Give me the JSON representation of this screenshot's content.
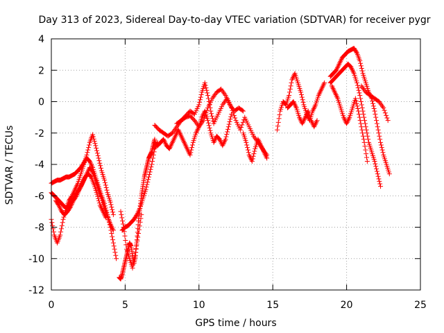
{
  "chart_data": {
    "type": "scatter",
    "title": "Day 313 of 2023, Sidereal Day-to-day VTEC variation (SDTVAR) for receiver pygr",
    "xlabel": "GPS time / hours",
    "ylabel": "SDTVAR / TECUs",
    "xlim": [
      0,
      25
    ],
    "ylim": [
      -12,
      4
    ],
    "xticks": [
      "0",
      "5",
      "10",
      "15",
      "20",
      "25"
    ],
    "yticks": [
      "-12",
      "-10",
      "-8",
      "-6",
      "-4",
      "-2",
      "0",
      "2",
      "4"
    ],
    "grid": true,
    "marker": "+",
    "color": "#ff0000",
    "series": [
      {
        "x": [
          0.0,
          0.2,
          0.4,
          0.6,
          0.8,
          1.0,
          1.2,
          1.4,
          1.6,
          1.8,
          2.0,
          2.2,
          2.4,
          2.6,
          2.8,
          3.0,
          3.2,
          3.4,
          3.6,
          3.8,
          4.0,
          4.2,
          4.4
        ],
        "y": [
          -5.2,
          -5.1,
          -5.0,
          -5.0,
          -4.9,
          -4.8,
          -4.8,
          -4.7,
          -4.6,
          -4.4,
          -4.2,
          -3.9,
          -3.6,
          -3.8,
          -4.2,
          -4.8,
          -5.4,
          -6.0,
          -6.5,
          -7.2,
          -8.0,
          -9.0,
          -10.0
        ]
      },
      {
        "x": [
          0.0,
          0.2,
          0.4,
          0.6,
          0.8,
          1.0,
          1.2,
          1.4,
          1.6,
          1.8,
          2.0,
          2.2,
          2.4,
          2.6,
          2.8,
          3.0,
          3.2,
          3.4,
          3.6,
          3.8,
          4.0,
          4.2
        ],
        "y": [
          -7.5,
          -8.5,
          -9.0,
          -8.5,
          -7.5,
          -6.8,
          -6.3,
          -6.0,
          -5.6,
          -5.2,
          -4.6,
          -4.0,
          -3.4,
          -2.6,
          -2.1,
          -2.8,
          -3.6,
          -4.4,
          -5.0,
          -5.8,
          -6.4,
          -7.2
        ]
      },
      {
        "x": [
          0.0,
          0.2,
          0.4,
          0.6,
          0.8,
          1.0,
          1.2,
          1.4,
          1.6,
          1.8,
          2.0,
          2.2,
          2.4,
          2.6,
          2.8,
          3.0,
          3.2,
          3.4,
          3.6,
          3.8,
          4.0,
          4.2
        ],
        "y": [
          -5.8,
          -6.0,
          -6.2,
          -6.4,
          -6.6,
          -6.8,
          -6.6,
          -6.3,
          -6.0,
          -5.7,
          -5.4,
          -5.0,
          -4.6,
          -4.2,
          -4.5,
          -5.0,
          -5.6,
          -6.2,
          -6.8,
          -7.3,
          -7.8,
          -8.2
        ]
      },
      {
        "x": [
          0.3,
          0.5,
          0.7,
          0.9,
          1.1,
          1.3,
          1.5,
          1.7,
          1.9,
          2.1,
          2.3,
          2.5,
          2.7,
          2.9,
          3.1,
          3.3,
          3.5,
          3.7
        ],
        "y": [
          -6.3,
          -6.6,
          -7.0,
          -7.2,
          -7.0,
          -6.7,
          -6.3,
          -6.0,
          -5.6,
          -5.2,
          -4.8,
          -4.6,
          -4.8,
          -5.3,
          -5.9,
          -6.6,
          -7.0,
          -7.4
        ]
      },
      {
        "x": [
          4.6,
          4.7,
          4.8,
          4.9,
          5.0,
          5.1,
          5.2,
          5.3,
          5.4,
          5.5,
          5.6,
          5.7,
          5.8,
          5.9,
          6.0,
          6.1,
          6.2,
          6.3,
          6.4,
          6.5,
          6.6,
          6.7,
          6.8,
          6.9,
          7.0
        ],
        "y": [
          -11.2,
          -11.3,
          -11.0,
          -10.6,
          -10.2,
          -9.8,
          -9.4,
          -9.0,
          -9.2,
          -9.8,
          -10.3,
          -9.8,
          -8.8,
          -7.6,
          -6.8,
          -6.0,
          -5.4,
          -4.8,
          -4.4,
          -4.0,
          -3.6,
          -3.4,
          -3.2,
          -2.8,
          -2.4
        ]
      },
      {
        "x": [
          4.8,
          5.0,
          5.2,
          5.4,
          5.6,
          5.8,
          6.0,
          6.2,
          6.4,
          6.6,
          6.8,
          7.0,
          7.2
        ],
        "y": [
          -8.2,
          -8.0,
          -7.9,
          -7.7,
          -7.5,
          -7.2,
          -6.8,
          -6.2,
          -5.6,
          -4.8,
          -4.0,
          -3.0,
          -2.6
        ]
      },
      {
        "x": [
          4.7,
          4.9,
          5.1,
          5.3,
          5.5,
          5.7,
          5.9,
          6.1
        ],
        "y": [
          -7.0,
          -8.0,
          -9.4,
          -10.0,
          -10.6,
          -9.6,
          -8.4,
          -7.2
        ]
      },
      {
        "x": [
          7.0,
          7.3,
          7.6,
          7.9,
          8.2,
          8.5,
          8.8,
          9.1,
          9.4,
          9.7,
          10.0,
          10.2,
          10.4,
          10.6,
          10.8,
          11.0,
          11.3,
          11.6,
          11.9,
          12.2,
          12.5,
          12.8,
          13.1,
          13.4,
          13.7,
          14.0,
          14.3,
          14.6
        ],
        "y": [
          -1.5,
          -1.8,
          -2.0,
          -2.2,
          -2.0,
          -1.6,
          -1.2,
          -0.9,
          -0.6,
          -0.8,
          -0.2,
          0.6,
          1.2,
          0.4,
          -0.6,
          -1.4,
          -0.8,
          -0.2,
          0.2,
          -0.4,
          -1.2,
          -1.8,
          -1.0,
          -1.6,
          -2.2,
          -2.6,
          -3.0,
          -3.4
        ]
      },
      {
        "x": [
          7.0,
          7.2,
          7.4,
          7.6,
          7.8,
          8.0,
          8.2,
          8.4,
          8.6,
          8.8,
          9.0,
          9.2,
          9.4,
          9.6,
          9.8,
          10.0,
          10.2,
          10.4,
          10.6,
          10.8,
          11.0,
          11.2,
          11.4,
          11.6,
          11.8,
          12.0,
          12.2
        ],
        "y": [
          -2.6,
          -2.8,
          -2.6,
          -2.4,
          -2.8,
          -3.0,
          -2.6,
          -2.2,
          -1.8,
          -2.2,
          -2.6,
          -3.0,
          -3.4,
          -2.6,
          -2.0,
          -1.6,
          -1.0,
          -0.6,
          -1.2,
          -2.0,
          -2.6,
          -2.2,
          -2.4,
          -2.8,
          -2.4,
          -1.6,
          -0.8
        ]
      },
      {
        "x": [
          8.5,
          8.8,
          9.1,
          9.4,
          9.7,
          10.0,
          10.3,
          10.6,
          10.9,
          11.2,
          11.5,
          11.8,
          12.1,
          12.4,
          12.7,
          13.0
        ],
        "y": [
          -1.4,
          -1.2,
          -1.0,
          -0.9,
          -1.2,
          -1.6,
          -1.2,
          -0.4,
          0.2,
          0.6,
          0.8,
          0.4,
          -0.2,
          -0.6,
          -0.4,
          -0.6
        ]
      },
      {
        "x": [
          13.0,
          13.2,
          13.4,
          13.6,
          13.8,
          14.0,
          14.2,
          14.4,
          14.6
        ],
        "y": [
          -2.0,
          -2.6,
          -3.4,
          -3.8,
          -3.0,
          -2.4,
          -2.8,
          -3.2,
          -3.6
        ]
      },
      {
        "x": [
          15.3,
          15.5,
          15.7,
          15.9,
          16.1,
          16.3,
          16.5,
          16.7,
          16.9,
          17.1,
          17.3,
          17.5,
          17.7,
          17.9,
          18.1,
          18.3,
          18.5
        ],
        "y": [
          -1.8,
          -0.6,
          0.0,
          -0.2,
          0.4,
          1.4,
          1.8,
          1.2,
          0.6,
          -0.2,
          -0.8,
          -1.2,
          -0.6,
          -0.2,
          0.4,
          0.8,
          1.2
        ]
      },
      {
        "x": [
          16.0,
          16.2,
          16.4,
          16.6,
          16.8,
          17.0,
          17.2,
          17.4,
          17.6,
          17.8,
          18.0
        ],
        "y": [
          -0.4,
          -0.2,
          0.0,
          -0.4,
          -1.0,
          -1.4,
          -1.0,
          -0.6,
          -1.2,
          -1.6,
          -1.2
        ]
      },
      {
        "x": [
          18.9,
          19.1,
          19.3,
          19.5,
          19.7,
          19.9,
          20.1,
          20.3,
          20.5,
          20.7,
          20.9,
          21.1,
          21.3,
          21.5,
          21.7,
          21.9,
          22.1,
          22.3,
          22.5,
          22.7,
          22.9
        ],
        "y": [
          1.6,
          1.8,
          2.0,
          2.4,
          2.8,
          3.0,
          3.2,
          3.3,
          3.4,
          3.1,
          2.6,
          1.8,
          1.2,
          0.6,
          0.2,
          -0.6,
          -1.6,
          -2.6,
          -3.4,
          -4.0,
          -4.6
        ]
      },
      {
        "x": [
          18.9,
          19.1,
          19.3,
          19.5,
          19.7,
          19.9,
          20.1,
          20.3,
          20.5,
          20.7,
          20.9,
          21.1,
          21.3,
          21.5,
          21.7,
          21.9,
          22.1,
          22.3
        ],
        "y": [
          1.2,
          1.4,
          1.6,
          1.8,
          2.0,
          2.2,
          2.4,
          2.2,
          1.8,
          1.2,
          0.4,
          -0.6,
          -1.6,
          -2.6,
          -3.2,
          -3.8,
          -4.6,
          -5.4
        ]
      },
      {
        "x": [
          19.0,
          19.2,
          19.4,
          19.6,
          19.8,
          20.0,
          20.2,
          20.4,
          20.6,
          20.8,
          21.0,
          21.2,
          21.4
        ],
        "y": [
          1.0,
          0.6,
          0.2,
          -0.4,
          -1.0,
          -1.4,
          -1.0,
          -0.4,
          0.2,
          -0.6,
          -1.6,
          -2.6,
          -3.8
        ]
      },
      {
        "x": [
          21.0,
          21.3,
          21.6,
          21.9,
          22.2,
          22.5,
          22.8
        ],
        "y": [
          1.0,
          0.6,
          0.4,
          0.2,
          0.0,
          -0.4,
          -1.2
        ]
      }
    ]
  }
}
